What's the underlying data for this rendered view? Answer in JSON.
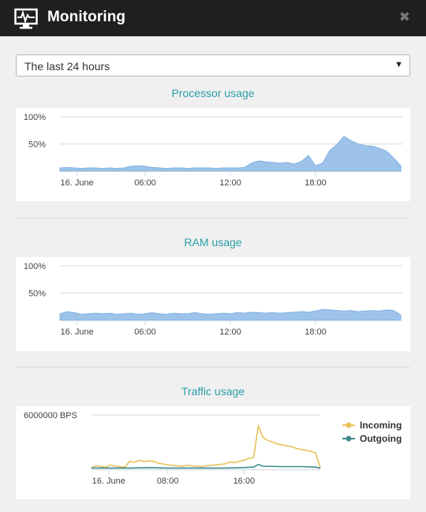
{
  "window": {
    "title": "Monitoring",
    "close_glyph": "✖",
    "icon": "monitor-pulse-icon"
  },
  "range_select": {
    "value": "The last 24 hours",
    "arrow_glyph": "▼"
  },
  "charts": {
    "processor": {
      "title": "Processor usage"
    },
    "ram": {
      "title": "RAM usage"
    },
    "traffic": {
      "title": "Traffic usage"
    }
  },
  "colors": {
    "accent": "#2b9ea7",
    "cpu_fill": "#9dc3ea",
    "incoming": "#e6c25a",
    "outgoing": "#3e8a8f"
  },
  "chart_data": [
    {
      "type": "area",
      "title": "Processor usage",
      "ylim": [
        0,
        100
      ],
      "yticks": [
        "100%",
        "50%"
      ],
      "xticks": [
        {
          "label": "16. June",
          "hour": 1.2
        },
        {
          "label": "06:00",
          "hour": 6
        },
        {
          "label": "12:00",
          "hour": 12
        },
        {
          "label": "18:00",
          "hour": 18
        }
      ],
      "xlim": [
        0,
        24
      ],
      "grid": true,
      "series": [
        {
          "x": [
            0,
            0.5,
            1,
            1.5,
            2,
            2.5,
            3,
            3.5,
            4,
            4.5,
            5,
            5.5,
            6,
            6.5,
            7,
            7.5,
            8,
            8.5,
            9,
            9.5,
            10,
            10.5,
            11,
            11.5,
            12,
            12.5,
            13,
            13.5,
            14,
            14.5,
            15,
            15.5,
            16,
            16.5,
            17,
            17.5,
            18,
            18.5,
            19,
            19.5,
            20,
            20.5,
            21,
            21.5,
            22,
            22.5,
            23,
            23.5,
            24
          ],
          "y": [
            6,
            7,
            6,
            5,
            6,
            6,
            5,
            6,
            5,
            6,
            9,
            10,
            9,
            7,
            6,
            5,
            6,
            6,
            5,
            6,
            6,
            6,
            5,
            6,
            6,
            6,
            7,
            15,
            19,
            17,
            16,
            15,
            16,
            13,
            18,
            29,
            10,
            15,
            38,
            49,
            64,
            56,
            50,
            47,
            46,
            42,
            37,
            24,
            10
          ]
        }
      ]
    },
    {
      "type": "area",
      "title": "RAM usage",
      "ylim": [
        0,
        100
      ],
      "yticks": [
        "100%",
        "50%"
      ],
      "xticks": [
        {
          "label": "16. June",
          "hour": 1.2
        },
        {
          "label": "06:00",
          "hour": 6
        },
        {
          "label": "12:00",
          "hour": 12
        },
        {
          "label": "18:00",
          "hour": 18
        }
      ],
      "xlim": [
        0,
        24
      ],
      "grid": true,
      "series": [
        {
          "x": [
            0,
            0.5,
            1,
            1.5,
            2,
            2.5,
            3,
            3.5,
            4,
            4.5,
            5,
            5.5,
            6,
            6.5,
            7,
            7.5,
            8,
            8.5,
            9,
            9.5,
            10,
            10.5,
            11,
            11.5,
            12,
            12.5,
            13,
            13.5,
            14,
            14.5,
            15,
            15.5,
            16,
            16.5,
            17,
            17.5,
            18,
            18.5,
            19,
            19.5,
            20,
            20.5,
            21,
            21.5,
            22,
            22.5,
            23,
            23.5,
            24
          ],
          "y": [
            12,
            16,
            14,
            11,
            12,
            13,
            12,
            13,
            11,
            12,
            13,
            11,
            12,
            14,
            12,
            11,
            13,
            12,
            12,
            14,
            12,
            11,
            12,
            13,
            12,
            14,
            13,
            15,
            14,
            13,
            14,
            13,
            14,
            15,
            16,
            15,
            17,
            20,
            19,
            18,
            17,
            18,
            16,
            17,
            18,
            17,
            19,
            18,
            10
          ]
        }
      ]
    },
    {
      "type": "line",
      "title": "Traffic usage",
      "ylim": [
        0,
        6000000
      ],
      "yticks": [
        "6000000 BPS"
      ],
      "xticks": [
        {
          "label": "16. June",
          "hour": 1.8
        },
        {
          "label": "08:00",
          "hour": 8
        },
        {
          "label": "16:00",
          "hour": 16
        }
      ],
      "xlim": [
        0,
        24
      ],
      "grid": true,
      "legend": "top-right",
      "series": [
        {
          "name": "Incoming",
          "color": "#e6c25a",
          "x": [
            0,
            0.5,
            1,
            1.5,
            2,
            2.5,
            3,
            3.5,
            4,
            4.5,
            5,
            5.5,
            6,
            6.5,
            7,
            7.5,
            8,
            8.5,
            9,
            9.5,
            10,
            10.5,
            11,
            11.5,
            12,
            12.5,
            13,
            13.5,
            14,
            14.5,
            15,
            15.5,
            16,
            16.5,
            17,
            17.5,
            18,
            18.5,
            19,
            19.5,
            20,
            20.5,
            21,
            21.5,
            22,
            22.5,
            23,
            23.5,
            24
          ],
          "y": [
            200000,
            400000,
            300000,
            250000,
            500000,
            350000,
            300000,
            250000,
            900000,
            800000,
            1000000,
            850000,
            950000,
            900000,
            700000,
            600000,
            500000,
            450000,
            400000,
            350000,
            450000,
            400000,
            350000,
            300000,
            400000,
            450000,
            500000,
            550000,
            600000,
            800000,
            750000,
            900000,
            1000000,
            1200000,
            1300000,
            4800000,
            3500000,
            3200000,
            3000000,
            2800000,
            2700000,
            2600000,
            2500000,
            2300000,
            2200000,
            2100000,
            2000000,
            1800000,
            200000
          ]
        },
        {
          "name": "Outgoing",
          "color": "#3e8a8f",
          "x": [
            0,
            2,
            4,
            6,
            8,
            10,
            12,
            14,
            16,
            17,
            17.5,
            18,
            20,
            22,
            23.5,
            24
          ],
          "y": [
            150000,
            150000,
            150000,
            200000,
            150000,
            150000,
            150000,
            150000,
            200000,
            250000,
            550000,
            350000,
            300000,
            300000,
            250000,
            150000
          ]
        }
      ]
    }
  ]
}
